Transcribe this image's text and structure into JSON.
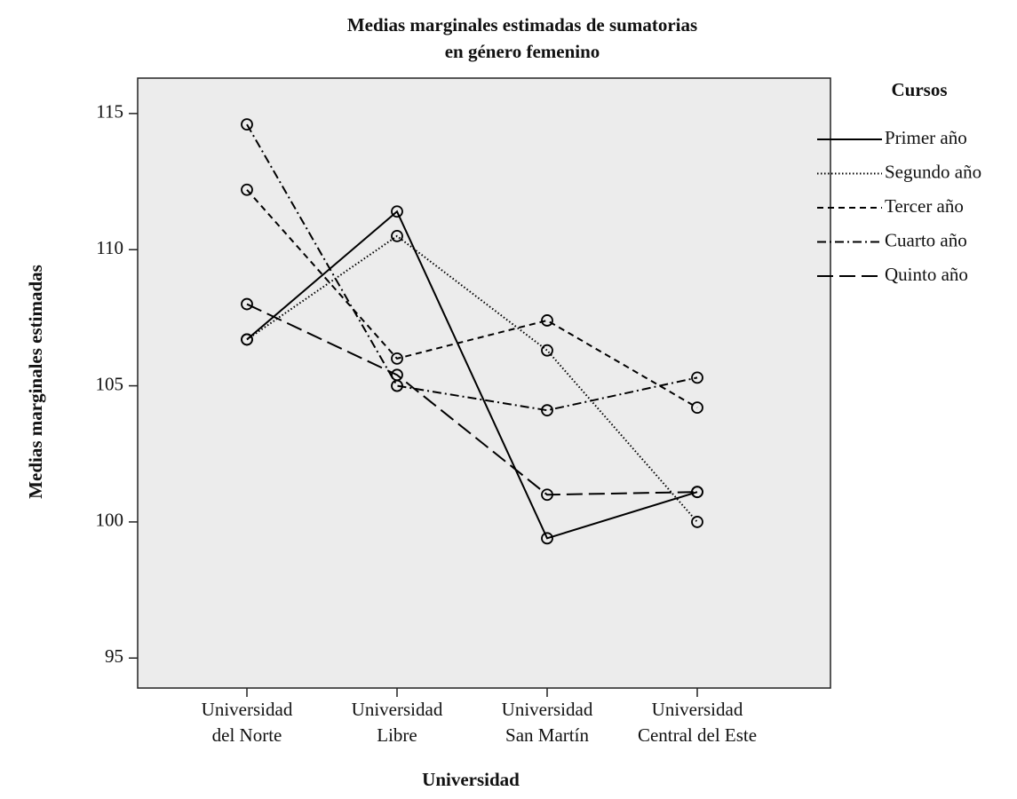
{
  "chart_data": {
    "type": "line",
    "title": [
      "Medias marginales estimadas de sumatorias",
      "en género femenino"
    ],
    "x_label": "Universidad",
    "y_label": "Medias marginales estimadas",
    "legend_title": "Cursos",
    "legend": "right",
    "categories": [
      "Universidad del Norte",
      "Universidad Libre",
      "Universidad San Martín",
      "Universidad Central del Este"
    ],
    "ylim": [
      93.9,
      116.3
    ],
    "yticks": [
      95,
      100,
      105,
      110,
      115
    ],
    "series": [
      {
        "name": "Primer año",
        "color": "#000000",
        "dash": "solid",
        "values": [
          106.7,
          111.4,
          99.4,
          101.1
        ]
      },
      {
        "name": "Segundo año",
        "color": "#000000",
        "dash": "dotted",
        "values": [
          106.7,
          110.5,
          106.3,
          100.0
        ]
      },
      {
        "name": "Tercer año",
        "color": "#000000",
        "dash": "dashed",
        "values": [
          112.2,
          106.0,
          107.4,
          104.2
        ]
      },
      {
        "name": "Cuarto año",
        "color": "#000000",
        "dash": "dashdot",
        "values": [
          114.6,
          105.0,
          104.1,
          105.3
        ]
      },
      {
        "name": "Quinto año",
        "color": "#000000",
        "dash": "longdash",
        "values": [
          108.0,
          105.4,
          101.0,
          101.1
        ]
      }
    ]
  }
}
